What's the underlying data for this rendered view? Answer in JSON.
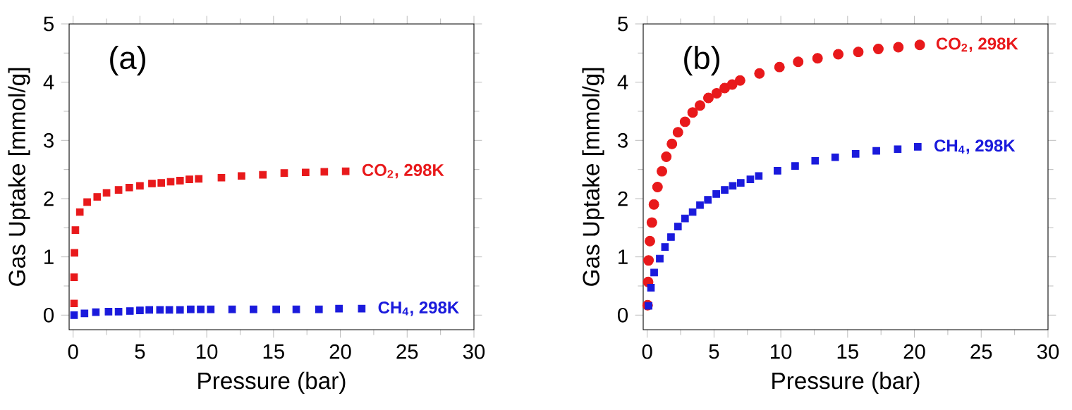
{
  "chart_data": [
    {
      "type": "scatter",
      "xlabel": "Pressure (bar)",
      "ylabel": "Gas Uptake [mmol/g]",
      "annotations": [
        "(a)"
      ],
      "xlim": [
        -0.3,
        30
      ],
      "ylim": [
        -0.25,
        5
      ],
      "xticks": [
        0,
        5,
        10,
        15,
        20,
        25,
        30
      ],
      "yticks": [
        0,
        1,
        2,
        3,
        4,
        5
      ],
      "grid": false,
      "legend": false,
      "series": [
        {
          "name": "CO$_{2}$, 298K",
          "color": "#e8191b",
          "marker": "square",
          "x": [
            0.07,
            0.07,
            0.1,
            0.17,
            0.5,
            1.05,
            1.8,
            2.5,
            3.4,
            4.2,
            5.0,
            5.9,
            6.6,
            7.3,
            8.0,
            8.7,
            9.4,
            11.1,
            12.6,
            14.2,
            15.8,
            17.4,
            18.8,
            20.4
          ],
          "values": [
            0.2,
            0.65,
            1.07,
            1.46,
            1.77,
            1.94,
            2.03,
            2.1,
            2.15,
            2.19,
            2.22,
            2.26,
            2.27,
            2.29,
            2.31,
            2.33,
            2.34,
            2.36,
            2.39,
            2.41,
            2.44,
            2.45,
            2.46,
            2.47
          ]
        },
        {
          "name": "CH$_{4}$, 298K",
          "color": "#1a1adc",
          "marker": "square",
          "x": [
            0.07,
            0.85,
            1.7,
            2.65,
            3.4,
            4.25,
            5.0,
            5.7,
            6.5,
            7.2,
            8.0,
            8.8,
            9.55,
            10.3,
            11.9,
            13.5,
            15.2,
            16.7,
            18.4,
            19.9,
            21.6
          ],
          "values": [
            0.0,
            0.03,
            0.05,
            0.06,
            0.06,
            0.07,
            0.08,
            0.09,
            0.09,
            0.09,
            0.09,
            0.1,
            0.1,
            0.1,
            0.1,
            0.1,
            0.1,
            0.1,
            0.1,
            0.11,
            0.11
          ]
        }
      ]
    },
    {
      "type": "scatter",
      "xlabel": "Pressure (bar)",
      "ylabel": "Gas Uptake [mmol/g]",
      "annotations": [
        "(b)"
      ],
      "xlim": [
        -0.3,
        30
      ],
      "ylim": [
        -0.25,
        5
      ],
      "xticks": [
        0,
        5,
        10,
        15,
        20,
        25,
        30
      ],
      "yticks": [
        0,
        1,
        2,
        3,
        4,
        5
      ],
      "grid": false,
      "legend": false,
      "series": [
        {
          "name": "CO$_{2}$, 298K",
          "color": "#e8191b",
          "marker": "circle",
          "x": [
            0.03,
            0.07,
            0.1,
            0.2,
            0.35,
            0.5,
            0.77,
            1.1,
            1.43,
            1.85,
            2.3,
            2.83,
            3.4,
            3.95,
            4.58,
            5.2,
            5.8,
            6.36,
            6.95,
            8.4,
            9.9,
            11.3,
            12.75,
            14.3,
            15.8,
            17.3,
            18.8,
            20.4
          ],
          "values": [
            0.17,
            0.57,
            0.94,
            1.27,
            1.59,
            1.9,
            2.2,
            2.47,
            2.72,
            2.94,
            3.14,
            3.32,
            3.48,
            3.6,
            3.73,
            3.81,
            3.9,
            3.96,
            4.03,
            4.15,
            4.26,
            4.35,
            4.41,
            4.48,
            4.52,
            4.57,
            4.6,
            4.64
          ]
        },
        {
          "name": "CH$_{4}$, 298K",
          "color": "#1a1adc",
          "marker": "square",
          "x": [
            0.1,
            0.28,
            0.52,
            0.94,
            1.33,
            1.78,
            2.3,
            2.83,
            3.4,
            3.95,
            4.54,
            5.17,
            5.8,
            6.4,
            7.0,
            7.72,
            8.35,
            9.75,
            11.07,
            12.57,
            14.07,
            15.6,
            17.15,
            18.75,
            20.25
          ],
          "values": [
            0.16,
            0.47,
            0.73,
            0.97,
            1.17,
            1.34,
            1.52,
            1.66,
            1.77,
            1.89,
            1.98,
            2.08,
            2.15,
            2.22,
            2.27,
            2.33,
            2.39,
            2.48,
            2.56,
            2.65,
            2.71,
            2.77,
            2.82,
            2.85,
            2.89
          ]
        }
      ]
    }
  ]
}
